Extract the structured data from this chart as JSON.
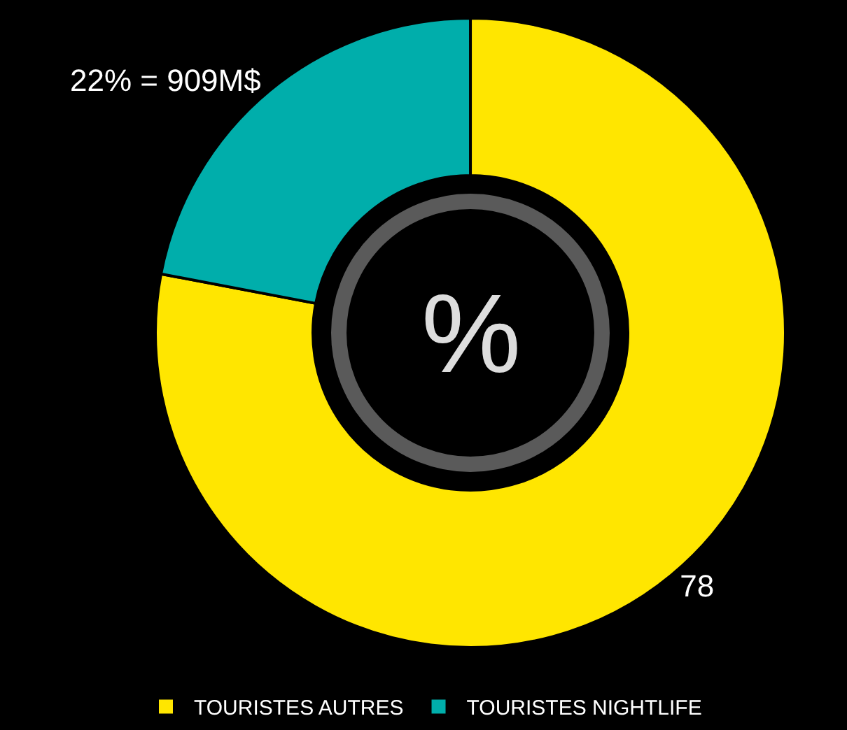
{
  "chart_data": {
    "type": "donut",
    "categories": [
      "TOURISTES AUTRES",
      "TOURISTES NIGHTLIFE"
    ],
    "values": [
      78,
      22
    ],
    "colors": [
      "#ffe600",
      "#00aeab"
    ],
    "value_labels": [
      "78",
      "22% = 909M$"
    ],
    "annotations": [
      "%"
    ],
    "legend": "bottom"
  }
}
